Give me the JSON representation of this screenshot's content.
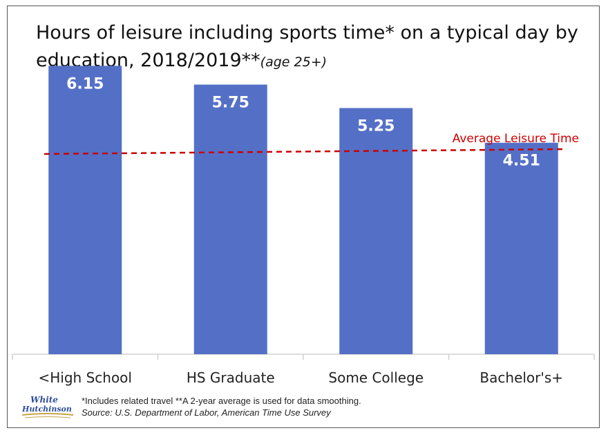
{
  "chart_data": {
    "type": "bar",
    "title": "Hours of leisure including sports time* on a typical day by education, 2018/2019**",
    "title_suffix": "(age 25+)",
    "categories": [
      "<High School",
      "HS Graduate",
      "Some College",
      "Bachelor's+"
    ],
    "values": [
      6.15,
      5.75,
      5.25,
      4.51
    ],
    "value_labels": [
      "6.15",
      "5.75",
      "5.25",
      "4.51"
    ],
    "bar_color": "#5470c6",
    "reference_line": {
      "label": "Average Leisure Time",
      "color": "#cc0000",
      "style": "dashed"
    },
    "ylim": [
      0,
      6.7
    ],
    "grid": false,
    "legend": "none"
  },
  "footnote": {
    "note": "*Includes related travel **A 2-year average is used for data smoothing.",
    "source": "Source: U.S. Department of Labor, American Time Use Survey"
  },
  "logo": {
    "line1": "White",
    "line2": "Hutchinson"
  }
}
